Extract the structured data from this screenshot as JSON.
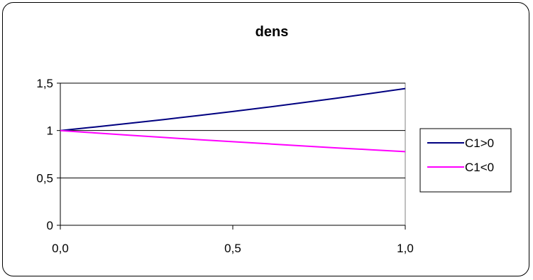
{
  "chart_data": {
    "type": "line",
    "title": "dens",
    "xlabel": "",
    "ylabel": "",
    "x_ticks": [
      "0,0",
      "0,5",
      "1,0"
    ],
    "x_tick_values": [
      0,
      0.5,
      1
    ],
    "y_ticks": [
      "0",
      "0,5",
      "1",
      "1,5"
    ],
    "y_tick_values": [
      0,
      0.5,
      1,
      1.5
    ],
    "xlim": [
      0,
      1
    ],
    "ylim": [
      0,
      1.5
    ],
    "grid": "horizontal",
    "legend_position": "right",
    "x": [
      0,
      0.1,
      0.2,
      0.3,
      0.4,
      0.5,
      0.6,
      0.7,
      0.8,
      0.9,
      1.0
    ],
    "series": [
      {
        "name": "C1>0",
        "color": "#000080",
        "values": [
          1.0,
          1.037,
          1.076,
          1.116,
          1.158,
          1.201,
          1.246,
          1.293,
          1.341,
          1.391,
          1.443
        ]
      },
      {
        "name": "C1<0",
        "color": "#ff00ff",
        "values": [
          1.0,
          0.975,
          0.951,
          0.927,
          0.904,
          0.882,
          0.86,
          0.838,
          0.817,
          0.797,
          0.777
        ]
      }
    ]
  }
}
